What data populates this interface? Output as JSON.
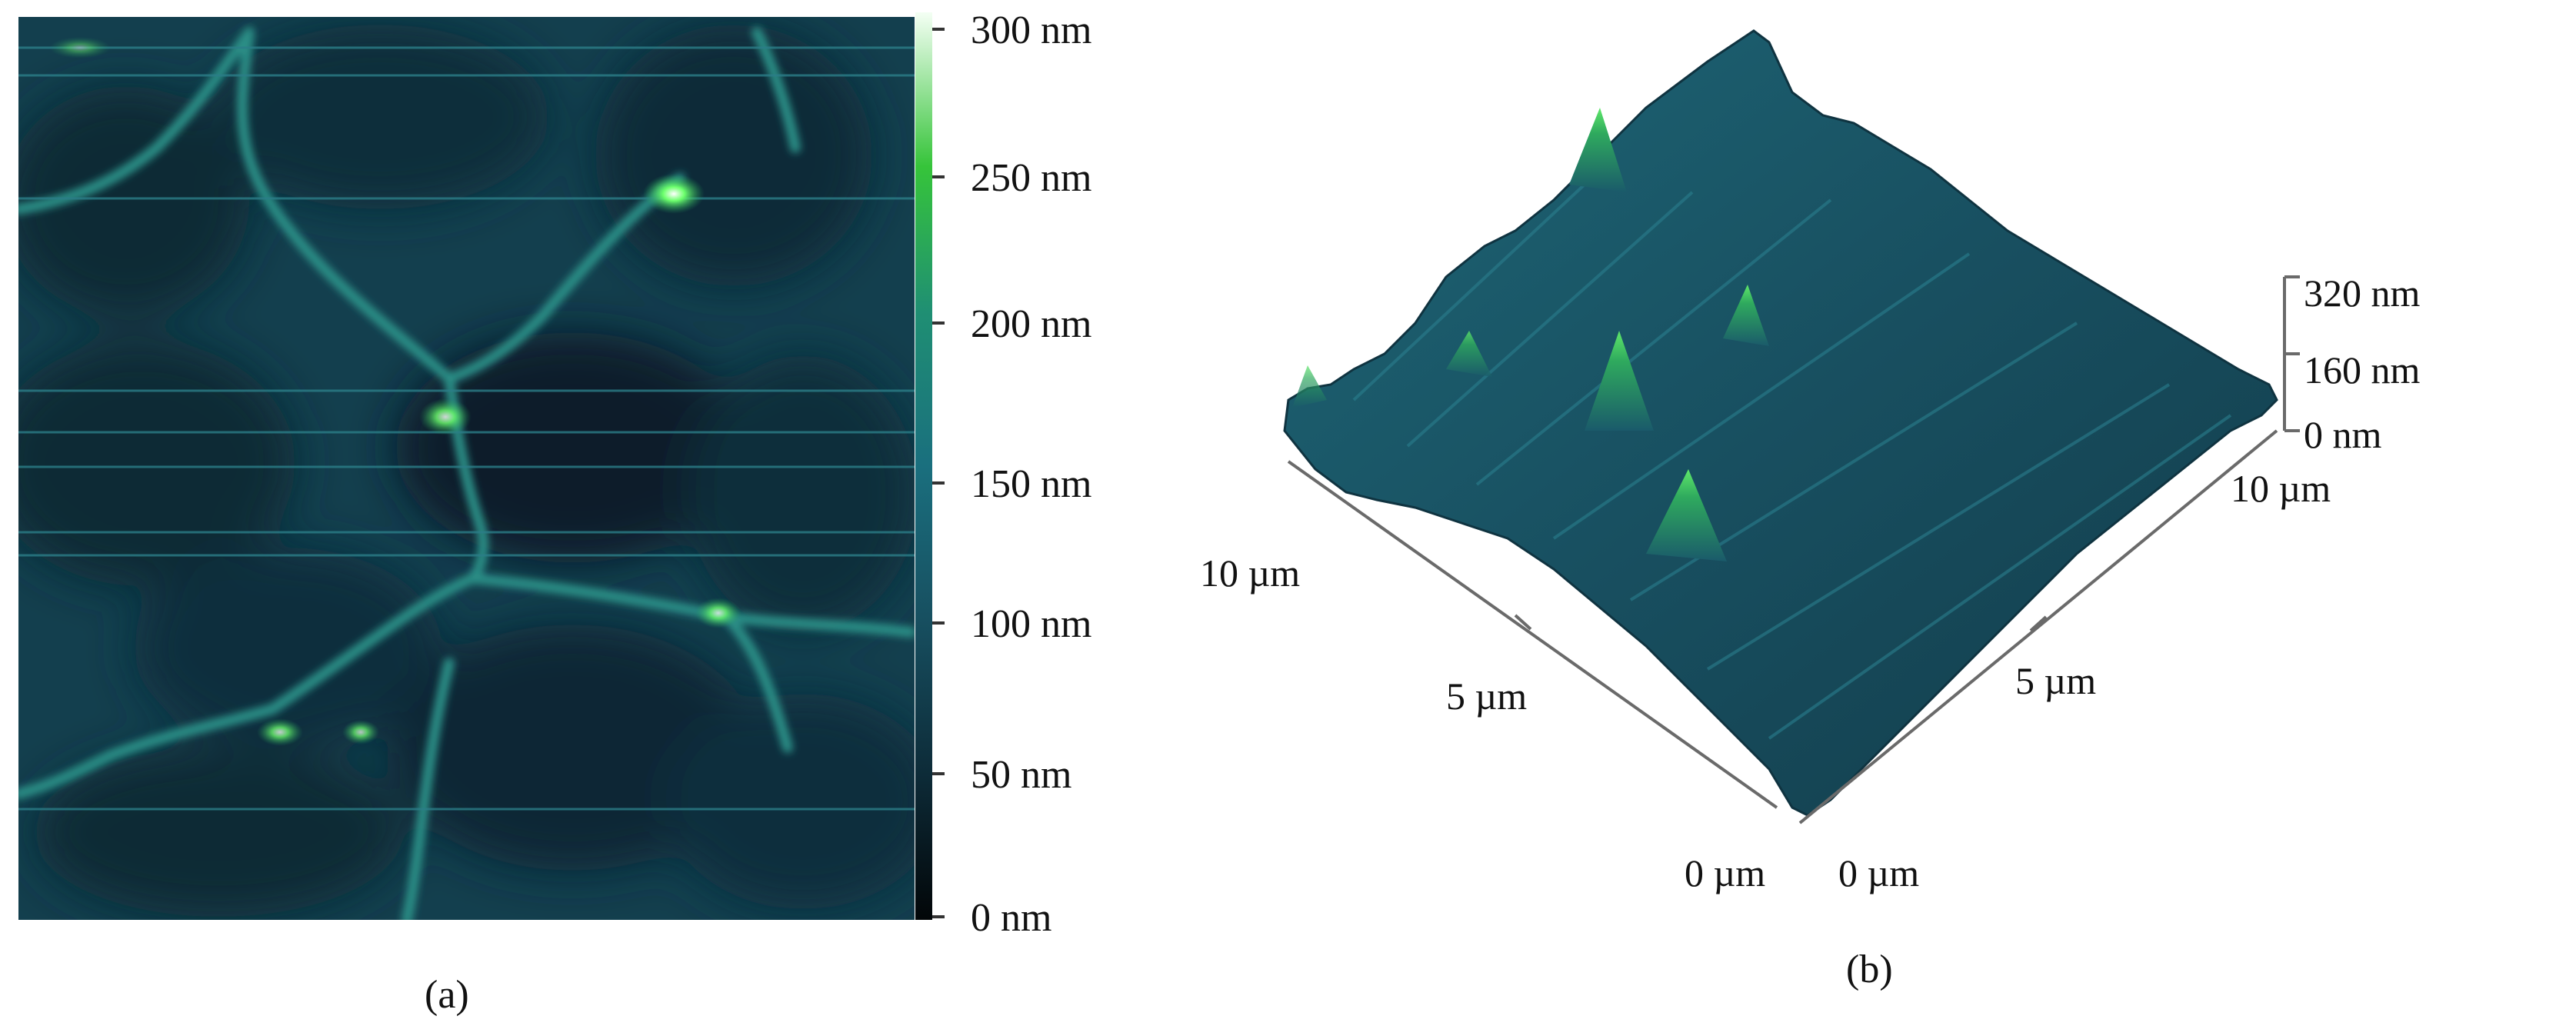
{
  "panel_a": {
    "caption": "(a)",
    "colorbar": {
      "ticks": [
        "300 nm",
        "250 nm",
        "200 nm",
        "150 nm",
        "100 nm",
        "50 nm",
        "0 nm"
      ],
      "colors": [
        "#f4fff4",
        "#36c43a",
        "#1f8f73",
        "#1a6f7e",
        "#174f60",
        "#0d2b38",
        "#020608"
      ]
    }
  },
  "panel_b": {
    "caption": "(b)",
    "z_axis": {
      "ticks": [
        "320 nm",
        "160 nm",
        "0 nm"
      ]
    },
    "left_axis": {
      "labels": [
        "10 µm",
        "5 µm",
        "0 µm"
      ]
    },
    "right_axis": {
      "labels": [
        "0 µm",
        "5 µm",
        "10 µm"
      ]
    },
    "surface_color": "#1d5f70",
    "peak_color": "#3ccf4a"
  }
}
